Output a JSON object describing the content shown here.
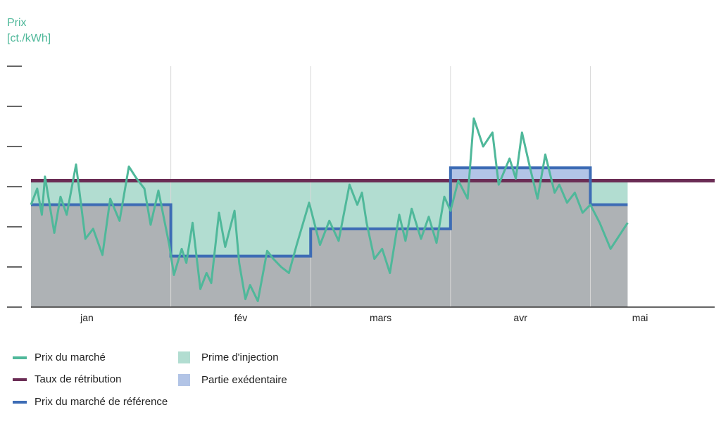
{
  "chart_data": {
    "type": "line",
    "yaxis_title": [
      "Prix",
      "[ct./kWh]"
    ],
    "x_categories": [
      "jan",
      "fév",
      "mars",
      "avr",
      "mai"
    ],
    "ylim": [
      0,
      6
    ],
    "yticks": [
      0,
      1,
      2,
      3,
      4,
      5,
      6
    ],
    "ytick_labels_shown": false,
    "month_boundaries": [
      4.75,
      9.25,
      13.75,
      18.25,
      22.75
    ],
    "reference_price_steps": [
      {
        "month": "jan",
        "from": 0,
        "to": 4.5,
        "value": 2.55
      },
      {
        "month": "fév",
        "from": 4.5,
        "to": 9.0,
        "value": 1.27
      },
      {
        "month": "mars",
        "from": 9.0,
        "to": 13.5,
        "value": 1.95
      },
      {
        "month": "avr",
        "from": 13.5,
        "to": 18.0,
        "value": 3.47
      },
      {
        "month": "mai",
        "from": 18.0,
        "to": 19.2,
        "value": 2.55
      }
    ],
    "remuneration_rate": 3.15,
    "market_price": {
      "x": [
        0,
        0.2,
        0.35,
        0.45,
        0.75,
        0.95,
        1.15,
        1.45,
        1.75,
        2.0,
        2.3,
        2.55,
        2.85,
        3.15,
        3.4,
        3.65,
        3.85,
        4.1,
        4.45,
        4.6,
        4.85,
        5.0,
        5.2,
        5.45,
        5.65,
        5.8,
        6.05,
        6.25,
        6.55,
        6.7,
        6.9,
        7.05,
        7.3,
        7.6,
        7.8,
        8.05,
        8.3,
        8.55,
        8.95,
        9.3,
        9.6,
        9.9,
        10.25,
        10.5,
        10.65,
        10.8,
        11.05,
        11.3,
        11.55,
        11.85,
        12.05,
        12.25,
        12.55,
        12.8,
        13.05,
        13.3,
        13.5,
        13.75,
        14.05,
        14.25,
        14.55,
        14.85,
        15.05,
        15.4,
        15.6,
        15.8,
        16.05,
        16.3,
        16.55,
        16.85,
        17.0,
        17.25,
        17.5,
        17.75,
        18.0,
        18.3,
        18.65,
        19.2
      ],
      "y": [
        2.55,
        2.95,
        2.3,
        3.25,
        1.85,
        2.75,
        2.3,
        3.55,
        1.7,
        1.95,
        1.3,
        2.7,
        2.15,
        3.5,
        3.2,
        2.95,
        2.05,
        2.9,
        1.55,
        0.8,
        1.45,
        1.1,
        2.1,
        0.45,
        0.85,
        0.6,
        2.35,
        1.5,
        2.4,
        1.1,
        0.2,
        0.55,
        0.15,
        1.4,
        1.2,
        1.0,
        0.85,
        1.55,
        2.6,
        1.55,
        2.15,
        1.65,
        3.05,
        2.55,
        2.85,
        2.1,
        1.2,
        1.45,
        0.85,
        2.3,
        1.65,
        2.45,
        1.7,
        2.25,
        1.6,
        2.75,
        2.4,
        3.15,
        2.7,
        4.7,
        4.0,
        4.35,
        3.05,
        3.7,
        3.2,
        4.35,
        3.5,
        2.7,
        3.8,
        2.85,
        3.05,
        2.6,
        2.85,
        2.35,
        2.55,
        2.1,
        1.45,
        2.1
      ]
    },
    "legend": [
      {
        "label": "Prix du marché",
        "kind": "line",
        "color": "#4fb89a"
      },
      {
        "label": "Taux de rétribution",
        "kind": "line",
        "color": "#6b2d55"
      },
      {
        "label": "Prix du marché de référence",
        "kind": "line",
        "color": "#3d6cb5"
      },
      {
        "label": "Prime d'injection",
        "kind": "box",
        "color": "#b2ddd1"
      },
      {
        "label": "Partie exédentaire",
        "kind": "box",
        "color": "#b2c4e6"
      }
    ],
    "colors": {
      "market": "#4fb89a",
      "rate": "#6b2d55",
      "reference": "#3d6cb5",
      "premium_fill": "#b2ddd1",
      "excess_fill": "#b2c4e6",
      "base_fill": "#aeb2b5",
      "gridline": "#d8d8d8",
      "axis": "#333333"
    }
  }
}
